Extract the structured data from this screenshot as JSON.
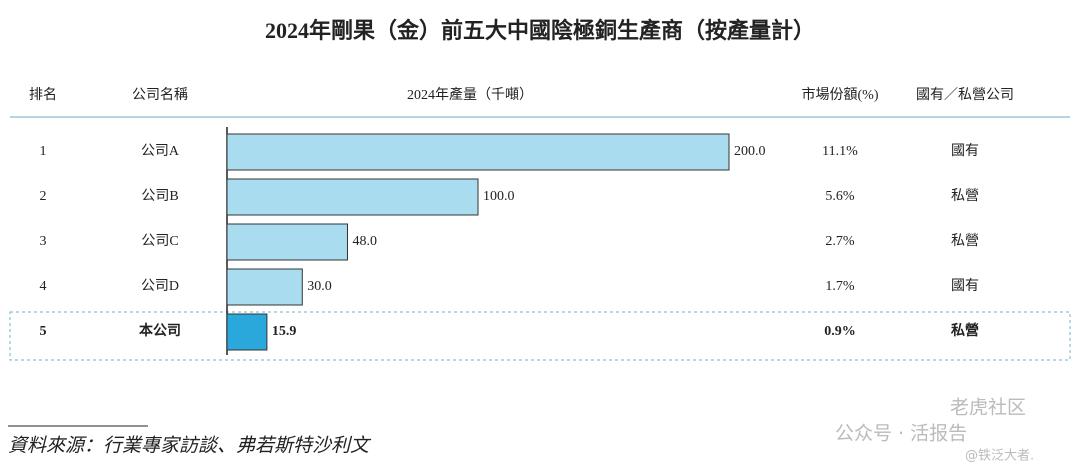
{
  "chart_data": {
    "type": "bar",
    "orientation": "horizontal",
    "title": "2024年剛果（金）前五大中國陰極銅生產商（按產量計）",
    "categories": [
      "公司A",
      "公司B",
      "公司C",
      "公司D",
      "本公司"
    ],
    "values": [
      200,
      100,
      48,
      30,
      15.9
    ],
    "value_labels": [
      "200.0",
      "100.0",
      "48.0",
      "30.0",
      "15.9"
    ],
    "color": "#a9dcef",
    "highlight_color": "#2aa8dc"
  },
  "table": {
    "headers": [
      "排名",
      "公司名稱",
      "2024年產量（千噸）",
      "市場份額(%)",
      "國有／私營公司"
    ],
    "ranks": [
      1,
      2,
      3,
      4,
      5
    ],
    "market_share": [
      11.1,
      5.6,
      2.7,
      1.7,
      0.9
    ],
    "market_share_labels": [
      "11.1%",
      "5.6%",
      "2.7%",
      "1.7%",
      "0.9%"
    ],
    "ownership": [
      "國有",
      "私營",
      "私營",
      "國有",
      "私營"
    ]
  },
  "source": "資料來源：行業專家訪談、弗若斯特沙利文",
  "watermark": [
    "老虎社区",
    "公众号 · 活报告",
    "@铁泛大者."
  ]
}
